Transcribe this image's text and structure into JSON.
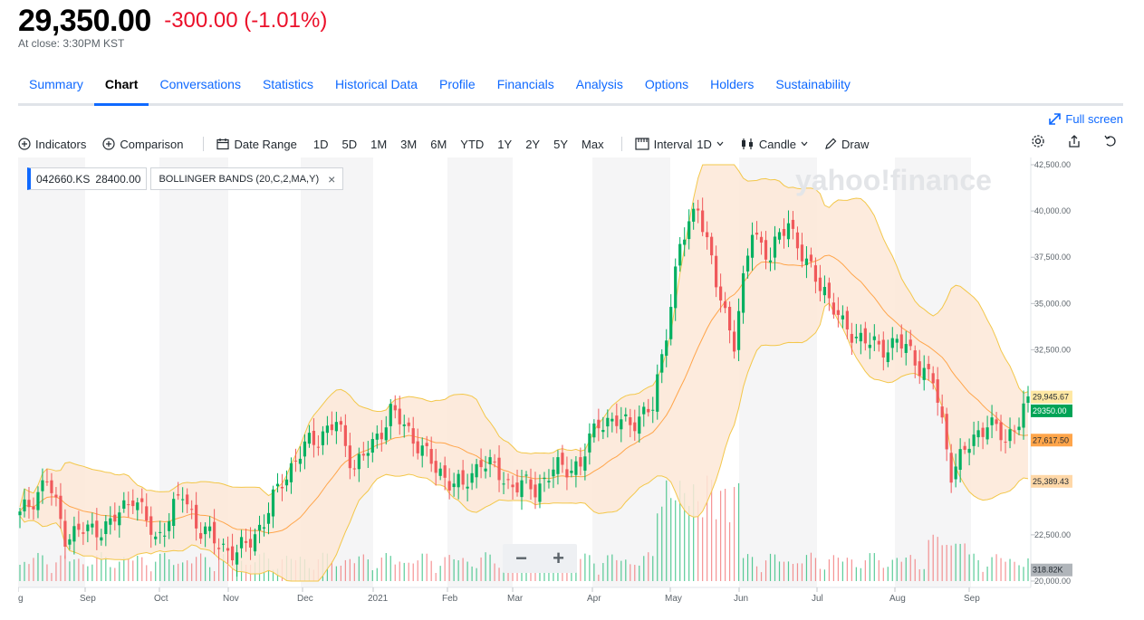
{
  "quote": {
    "price": "29,350.00",
    "change": "-300.00 (-1.01%)",
    "close_note": "At close: 3:30PM KST"
  },
  "tabs": [
    {
      "label": "Summary"
    },
    {
      "label": "Chart",
      "active": true
    },
    {
      "label": "Conversations"
    },
    {
      "label": "Statistics"
    },
    {
      "label": "Historical Data"
    },
    {
      "label": "Profile"
    },
    {
      "label": "Financials"
    },
    {
      "label": "Analysis"
    },
    {
      "label": "Options"
    },
    {
      "label": "Holders"
    },
    {
      "label": "Sustainability"
    }
  ],
  "fullscreen_label": "Full screen",
  "toolbar": {
    "indicators": "Indicators",
    "comparison": "Comparison",
    "date_range": "Date Range",
    "ranges": [
      "1D",
      "5D",
      "1M",
      "3M",
      "6M",
      "YTD",
      "1Y",
      "2Y",
      "5Y",
      "Max"
    ],
    "interval_label": "Interval",
    "interval_value": "1D",
    "chart_type": "Candle",
    "draw": "Draw"
  },
  "chart_legend": {
    "symbol": "042660.KS",
    "last": "28400.00",
    "indicator": "BOLLINGER BANDS (20,C,2,MA,Y)"
  },
  "watermark": "yahoo!finance",
  "chart_data": {
    "type": "candlestick",
    "y_axis": {
      "ylim": [
        20000,
        42500
      ],
      "ticks": [
        "42,500.00",
        "40,000.00",
        "37,500.00",
        "35,000.00",
        "32,500.00",
        "22,500.00",
        "20,000.00"
      ]
    },
    "x_axis": {
      "labels": [
        "g",
        "Sep",
        "Oct",
        "Nov",
        "Dec",
        "2021",
        "Feb",
        "Mar",
        "Apr",
        "May",
        "Jun",
        "Jul",
        "Aug",
        "Sep"
      ]
    },
    "price_tags": {
      "upper_band": "29,945.67",
      "last_price": "29350.00",
      "middle_band": "27,617.50",
      "lower_band": "25,389.43",
      "volume": "318.82K"
    },
    "close_anchor_points": [
      [
        0,
        23500
      ],
      [
        6,
        25500
      ],
      [
        10,
        22500
      ],
      [
        20,
        23000
      ],
      [
        25,
        24700
      ],
      [
        30,
        22200
      ],
      [
        36,
        24700
      ],
      [
        40,
        22700
      ],
      [
        48,
        21400
      ],
      [
        54,
        23200
      ],
      [
        58,
        25500
      ],
      [
        64,
        27500
      ],
      [
        70,
        28500
      ],
      [
        74,
        26200
      ],
      [
        78,
        27300
      ],
      [
        82,
        29200
      ],
      [
        88,
        27500
      ],
      [
        92,
        26000
      ],
      [
        98,
        25000
      ],
      [
        102,
        26600
      ],
      [
        108,
        25300
      ],
      [
        114,
        25000
      ],
      [
        118,
        26000
      ],
      [
        124,
        26300
      ],
      [
        128,
        28700
      ],
      [
        134,
        28500
      ],
      [
        140,
        29300
      ],
      [
        146,
        38000
      ],
      [
        150,
        40500
      ],
      [
        154,
        36000
      ],
      [
        158,
        33000
      ],
      [
        162,
        39000
      ],
      [
        166,
        37500
      ],
      [
        170,
        39500
      ],
      [
        174,
        37000
      ],
      [
        178,
        35800
      ],
      [
        182,
        33700
      ],
      [
        186,
        33200
      ],
      [
        190,
        32500
      ],
      [
        194,
        33000
      ],
      [
        198,
        32000
      ],
      [
        202,
        30800
      ],
      [
        206,
        26000
      ],
      [
        210,
        27300
      ],
      [
        214,
        28700
      ],
      [
        218,
        27500
      ],
      [
        222,
        29350
      ]
    ]
  },
  "zoom": {
    "minus": "−",
    "plus": "+"
  },
  "colors": {
    "up": "#00b061",
    "down": "#f0595b",
    "band_fill": "#fde8d7",
    "upper_band_line": "#f3c74a",
    "middle_band_line": "#ffa54a",
    "accent": "#0f69ff",
    "negative": "#eb0f29"
  }
}
